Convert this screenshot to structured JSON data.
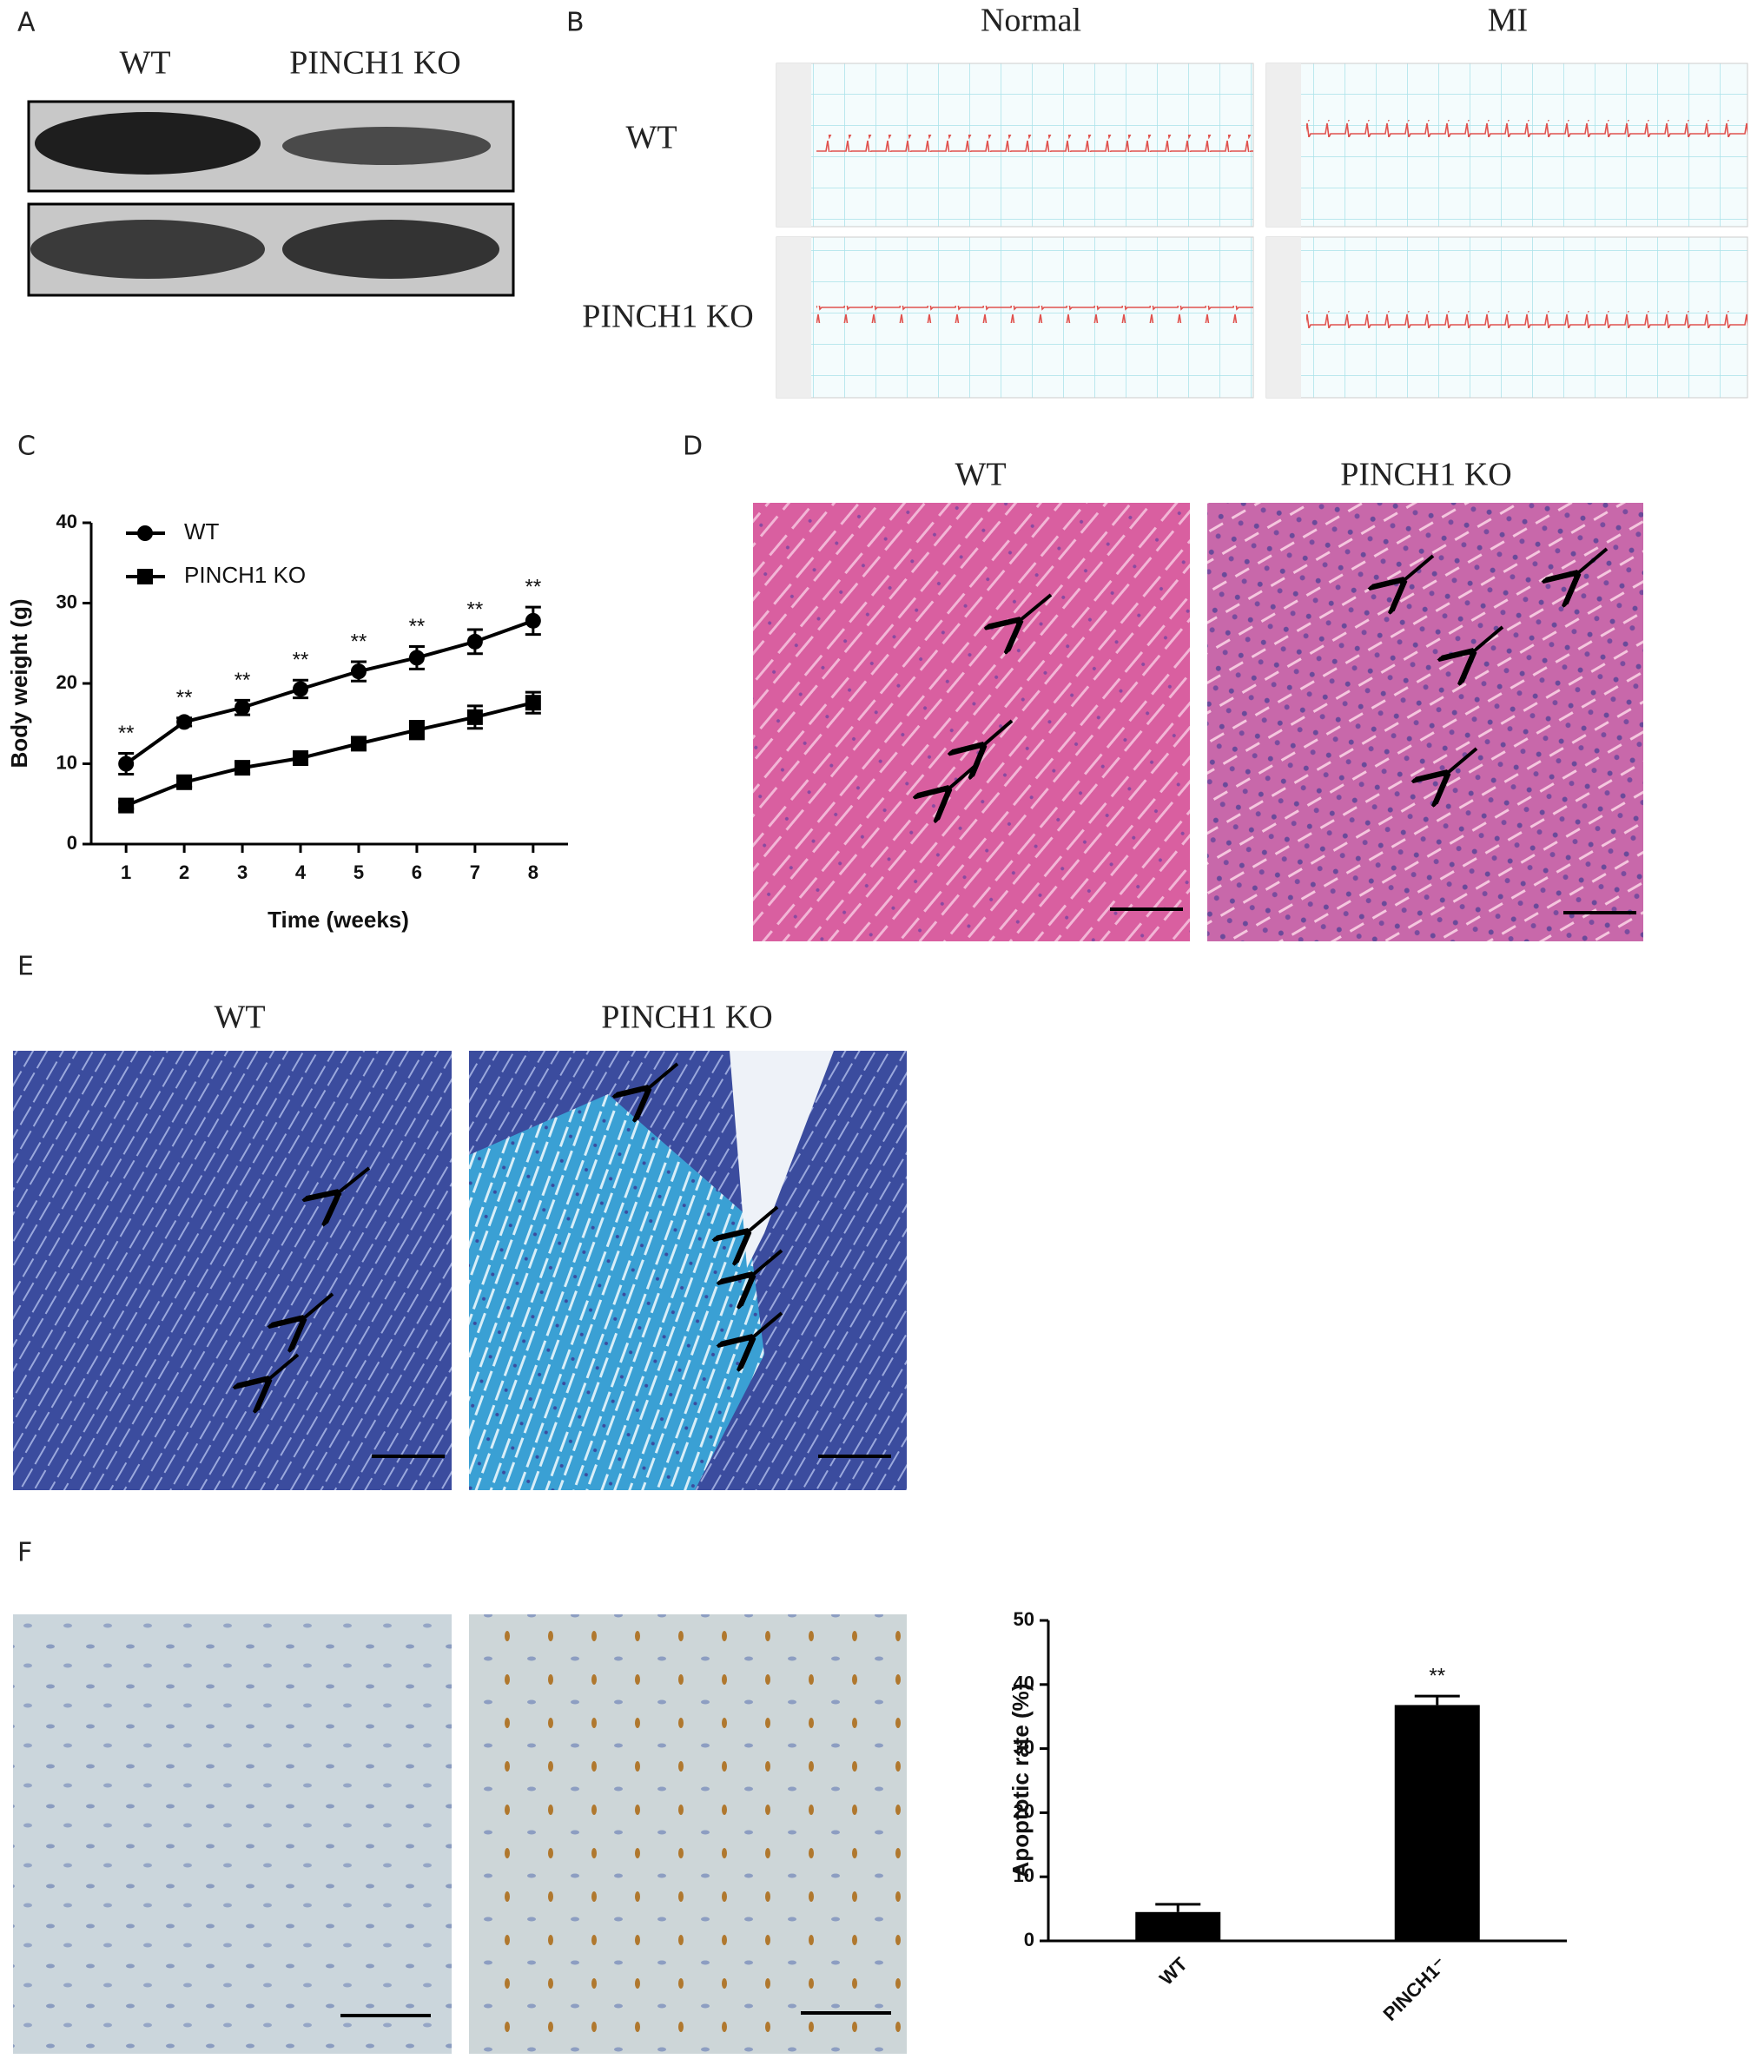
{
  "panel_labels": [
    "A",
    "B",
    "C",
    "D",
    "E",
    "F"
  ],
  "western_blot": {
    "labels": [
      "WT",
      "PINCH1 KO"
    ]
  },
  "ecg": {
    "columns": [
      "Normal",
      "MI"
    ],
    "rows": [
      "WT",
      "PINCH1 KO"
    ]
  },
  "he_stain": {
    "labels": [
      "WT",
      "PINCH1 KO"
    ]
  },
  "masson_stain": {
    "labels": [
      "WT",
      "PINCH1 KO"
    ]
  },
  "chart_data": [
    {
      "type": "line",
      "x_label": "Time (weeks)",
      "y_label": "Body weight (g)",
      "x": [
        1,
        2,
        3,
        4,
        5,
        6,
        7,
        8
      ],
      "xlim": [
        0.4,
        8.6
      ],
      "xticks": [
        1,
        2,
        3,
        4,
        5,
        6,
        7,
        8
      ],
      "ylim": [
        0,
        40
      ],
      "yticks": [
        0,
        10,
        20,
        30,
        40
      ],
      "legend": "top-left",
      "series": [
        {
          "name": "WT",
          "color": "#000000",
          "marker": "circle",
          "values": [
            10,
            15.2,
            17,
            19.3,
            21.5,
            23.2,
            25.2,
            27.8
          ],
          "errors": [
            1.3,
            0.5,
            0.9,
            1.1,
            1.2,
            1.4,
            1.5,
            1.7
          ]
        },
        {
          "name": "PINCH1 KO",
          "color": "#000000",
          "marker": "square",
          "values": [
            4.8,
            7.7,
            9.5,
            10.7,
            12.5,
            14.2,
            15.8,
            17.6
          ],
          "errors": [
            0.4,
            0.6,
            0.7,
            0.7,
            0.7,
            1.1,
            1.4,
            1.3
          ]
        }
      ],
      "significance": [
        "**",
        "**",
        "**",
        "**",
        "**",
        "**",
        "**",
        "**"
      ]
    },
    {
      "type": "bar",
      "y_label": "Apoptotic rate (%)",
      "categories": [
        "WT",
        "PINCH1⁻"
      ],
      "values": [
        4.5,
        36.8
      ],
      "errors": [
        1.2,
        1.4
      ],
      "color": "#000000",
      "ylim": [
        0,
        50
      ],
      "yticks": [
        0,
        10,
        20,
        30,
        40,
        50
      ],
      "significance": [
        null,
        "**"
      ]
    }
  ]
}
